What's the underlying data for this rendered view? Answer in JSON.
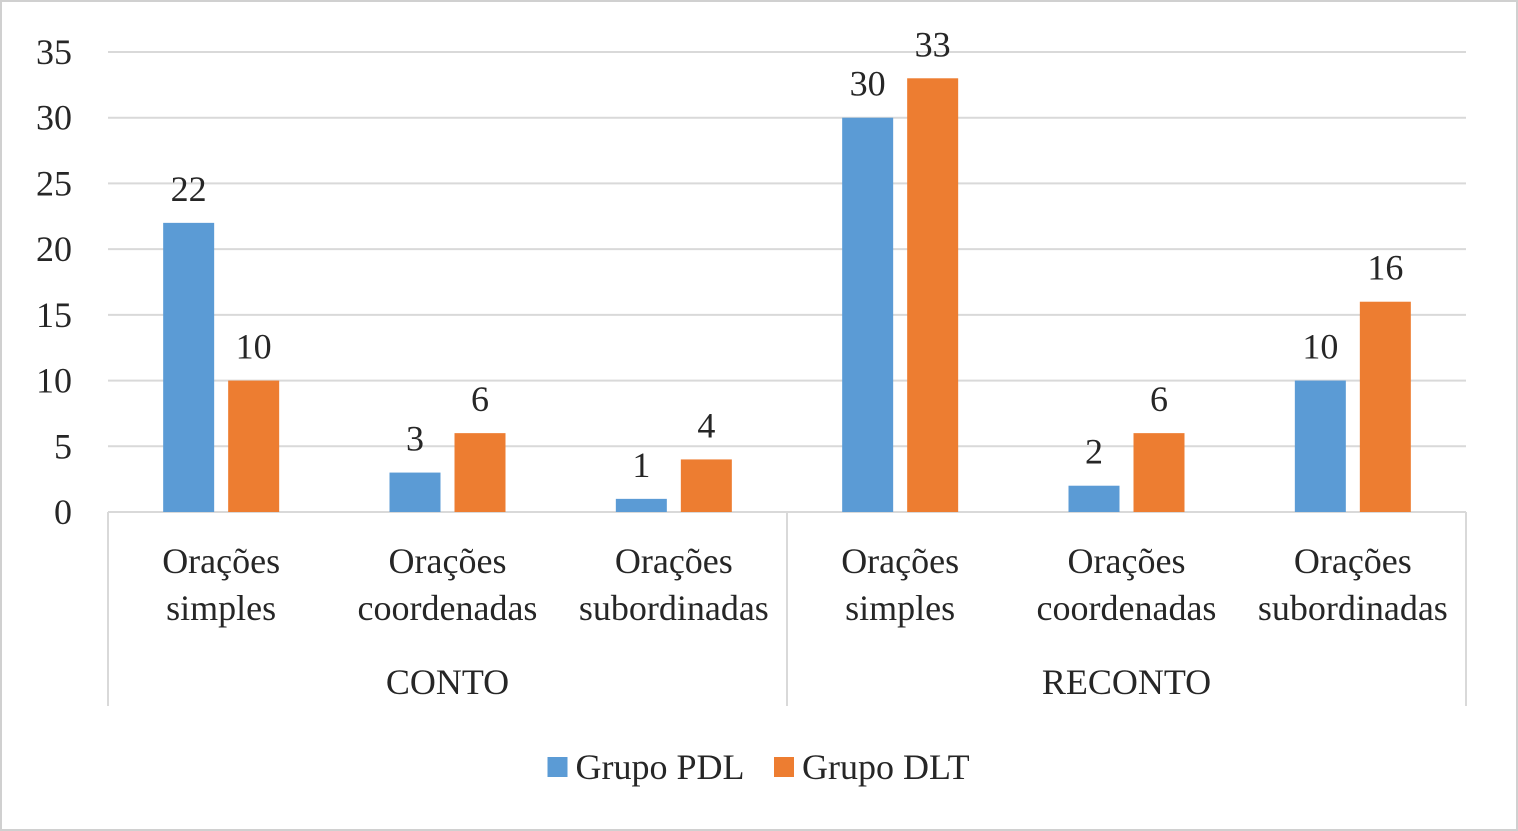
{
  "chart_data": {
    "type": "bar",
    "groups": [
      {
        "label": "CONTO",
        "categories": [
          "Orações simples",
          "Orações coordenadas",
          "Orações subordinadas"
        ]
      },
      {
        "label": "RECONTO",
        "categories": [
          "Orações simples",
          "Orações coordenadas",
          "Orações subordinadas"
        ]
      }
    ],
    "categories": [
      [
        "Orações",
        "simples"
      ],
      [
        "Orações",
        "coordenadas"
      ],
      [
        "Orações",
        "subordinadas"
      ],
      [
        "Orações",
        "simples"
      ],
      [
        "Orações",
        "coordenadas"
      ],
      [
        "Orações",
        "subordinadas"
      ]
    ],
    "series": [
      {
        "name": "Grupo PDL",
        "color": "#5b9bd5",
        "values": [
          22,
          3,
          1,
          30,
          2,
          10
        ]
      },
      {
        "name": "Grupo DLT",
        "color": "#ed7d31",
        "values": [
          10,
          6,
          4,
          33,
          6,
          16
        ]
      }
    ],
    "ylim": [
      0,
      35
    ],
    "yticks": [
      0,
      5,
      10,
      15,
      20,
      25,
      30,
      35
    ],
    "grid": true,
    "legend": "bottom",
    "data_labels": true,
    "title": "",
    "xlabel": "",
    "ylabel": ""
  }
}
